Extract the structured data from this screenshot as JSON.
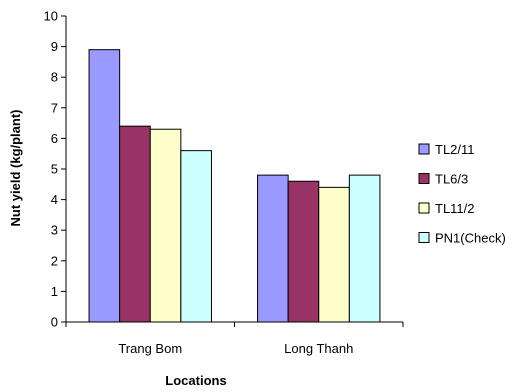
{
  "chart_data": {
    "type": "bar",
    "title": "",
    "xlabel": "Locations",
    "ylabel": "Nut yield (kg/plant)",
    "ylim": [
      0,
      10
    ],
    "yticks": [
      0,
      1,
      2,
      3,
      4,
      5,
      6,
      7,
      8,
      9,
      10
    ],
    "grid": false,
    "legend_position": "right",
    "categories": [
      "Trang Bom",
      "Long Thanh"
    ],
    "series": [
      {
        "name": "TL2/11",
        "color": "#9999FF",
        "values": [
          8.9,
          4.8
        ]
      },
      {
        "name": "TL6/3",
        "color": "#993366",
        "values": [
          6.4,
          4.6
        ]
      },
      {
        "name": "TL11/2",
        "color": "#FFFFCC",
        "values": [
          6.3,
          4.4
        ]
      },
      {
        "name": "PN1(Check)",
        "color": "#CCFFFF",
        "values": [
          5.6,
          4.8
        ]
      }
    ]
  }
}
